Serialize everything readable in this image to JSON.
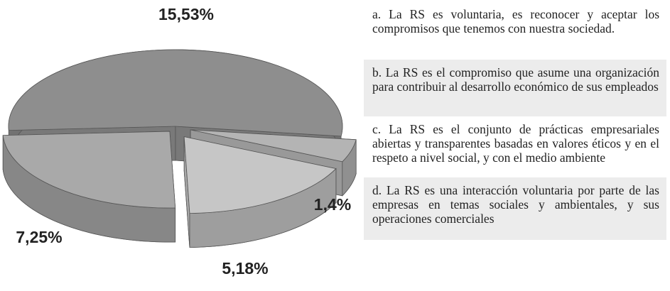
{
  "chart_data": {
    "type": "pie3d",
    "categories": [
      "a. La RS es voluntaria, es reconocer y aceptar los compromisos que tenemos con nuestra sociedad.",
      "b. La RS es el compromiso que asume una organización para contribuir al desarrollo económico de sus empleados",
      "c. La RS es el conjunto de prácticas empresariales abiertas y transparentes basadas en valores éticos y en el respeto a nivel social, y con el medio ambiente",
      "d. La RS es una interacción voluntaria por parte de las empresas en temas sociales y ambientales, y sus operaciones comerciales"
    ],
    "values": [
      15.53,
      1.4,
      5.18,
      7.25
    ],
    "value_labels": [
      "15,53%",
      "1,4%",
      "5,18%",
      "7,25%"
    ],
    "colors": [
      "#8e8e8e",
      "#b4b4b4",
      "#c6c6c6",
      "#a9a9a9"
    ]
  }
}
